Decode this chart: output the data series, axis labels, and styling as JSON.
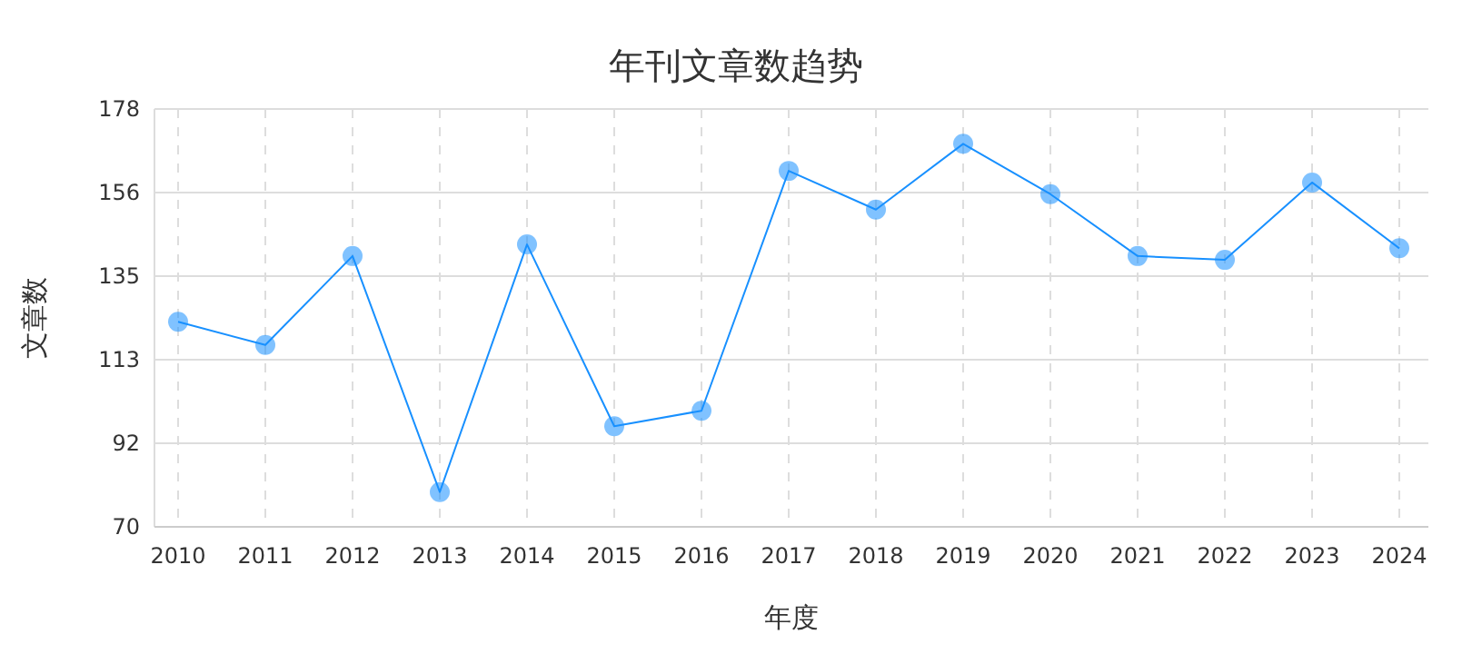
{
  "chart_data": {
    "type": "line",
    "title": "年刊文章数趋势",
    "xlabel": "年度",
    "ylabel": "文章数",
    "categories": [
      "2010",
      "2011",
      "2012",
      "2013",
      "2014",
      "2015",
      "2016",
      "2017",
      "2018",
      "2019",
      "2020",
      "2021",
      "2022",
      "2023",
      "2024"
    ],
    "series": [
      {
        "color": "#1890ff",
        "values": [
          123,
          117,
          140,
          79,
          143,
          96,
          100,
          162,
          152,
          169,
          156,
          140,
          139,
          159,
          142
        ]
      }
    ],
    "ylim": [
      70,
      178
    ],
    "yticks": [
      70,
      {
        "value": 91.6,
        "label": "92"
      },
      {
        "value": 113.2,
        "label": "113"
      },
      {
        "value": 134.8,
        "label": "135"
      },
      {
        "value": 156.4,
        "label": "156"
      },
      178
    ],
    "grid": true,
    "marker": "circle",
    "line_style": "solid"
  }
}
